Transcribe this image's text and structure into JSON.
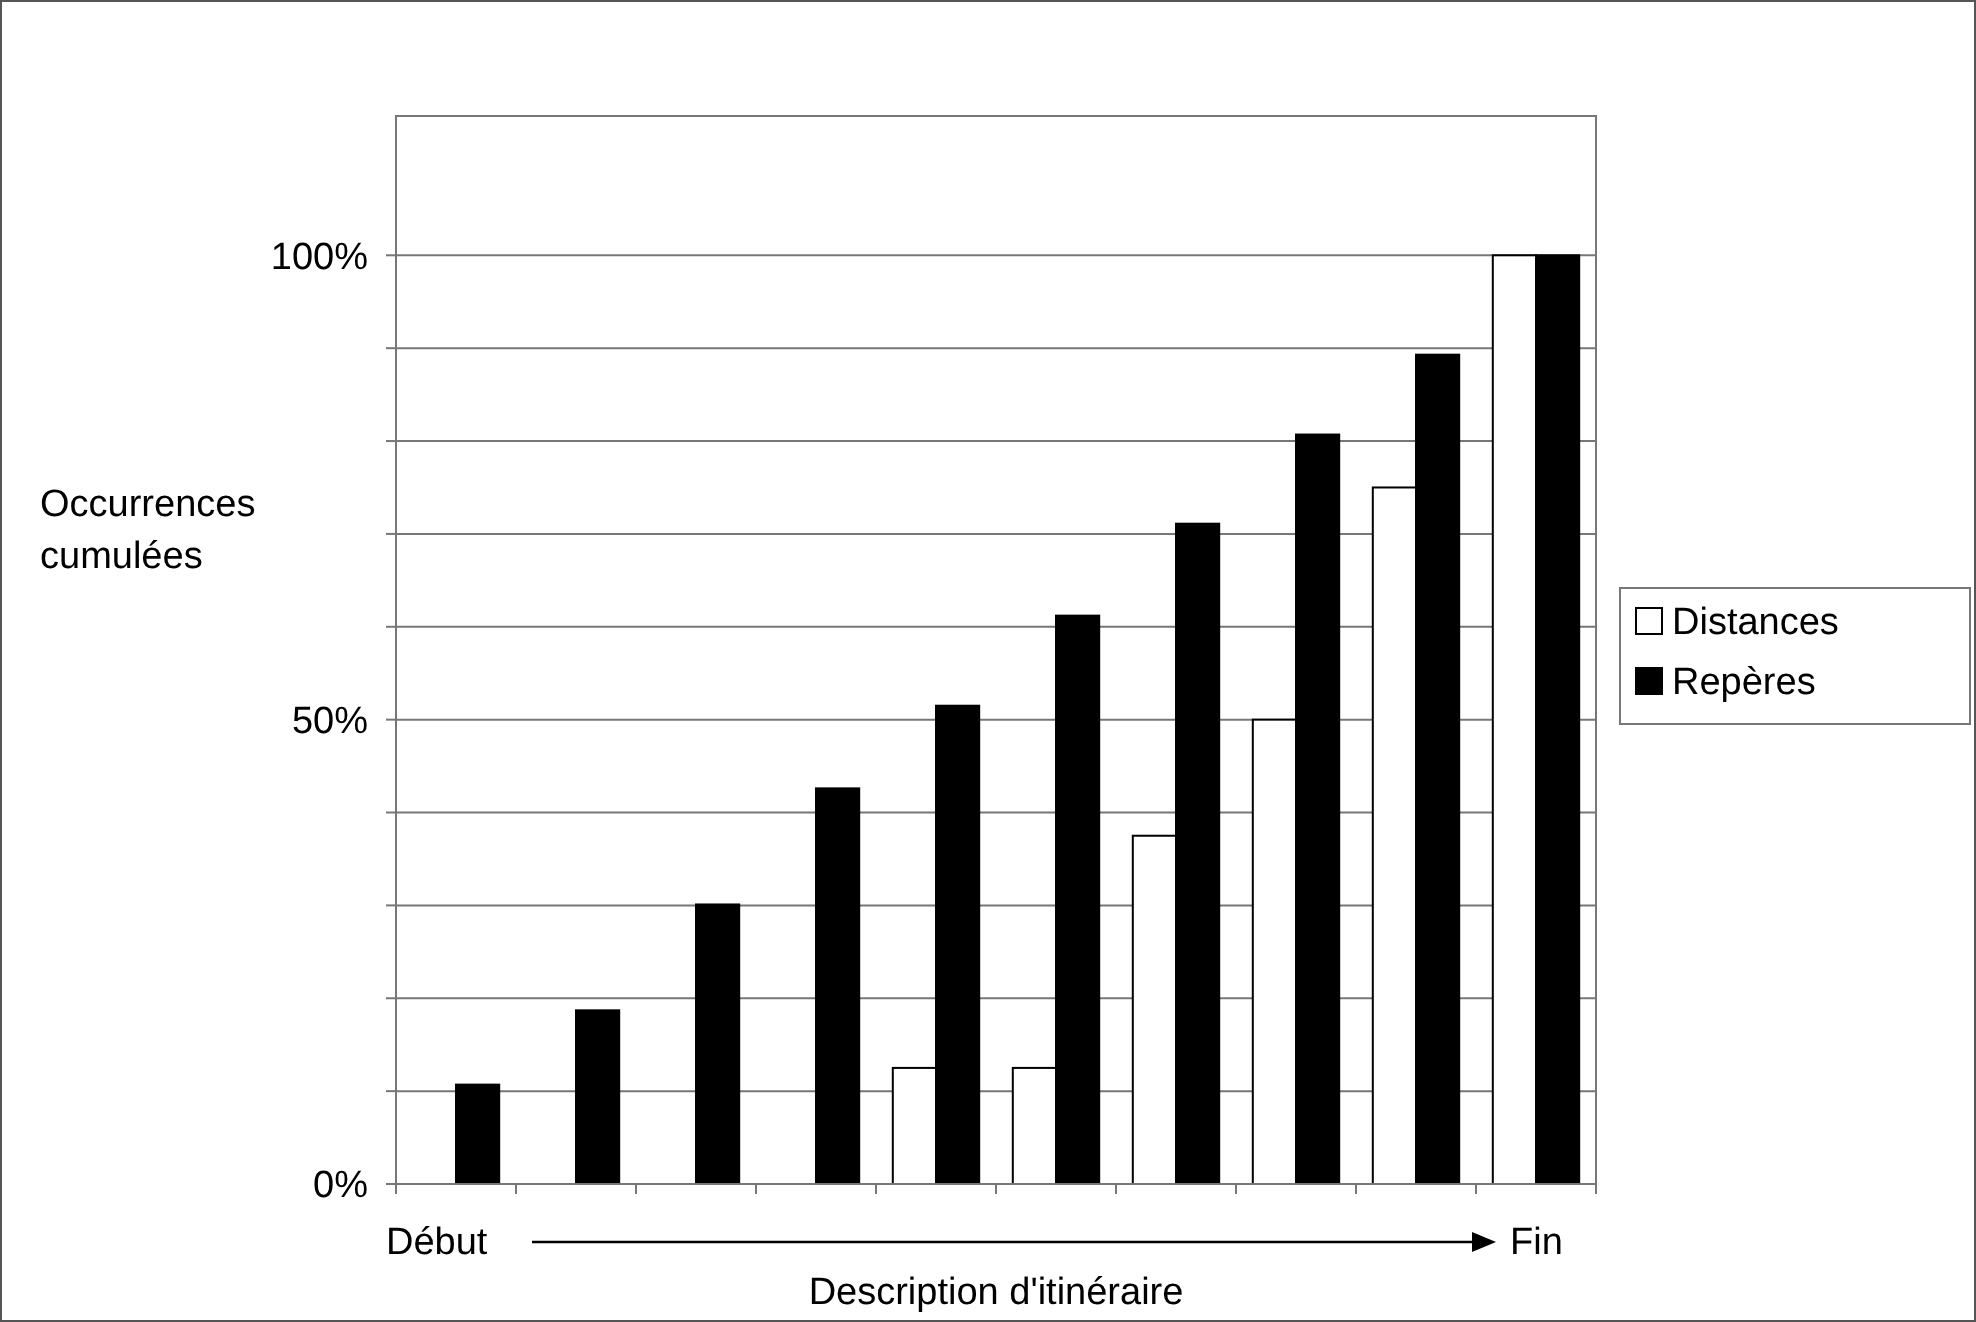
{
  "chart_data": {
    "type": "bar",
    "xlabel": "Description d'itinéraire",
    "ylabel": "Occurrences cumulées",
    "categories": [
      null,
      null,
      null,
      null,
      null,
      null,
      null,
      null,
      null,
      null
    ],
    "series": [
      {
        "name": "Distances",
        "color": "#ffffff",
        "values": [
          0,
          0,
          0,
          0,
          12.5,
          12.5,
          37.5,
          50,
          75,
          100
        ]
      },
      {
        "name": "Repères",
        "color": "#000000",
        "values": [
          10.7,
          18.7,
          30.1,
          42.6,
          51.5,
          61.2,
          71.1,
          80.7,
          89.3,
          100
        ]
      }
    ],
    "ylim": [
      0,
      115
    ],
    "yticks": [
      {
        "value": 0,
        "label": "0%"
      },
      {
        "value": 10,
        "label": null
      },
      {
        "value": 20,
        "label": null
      },
      {
        "value": 30,
        "label": null
      },
      {
        "value": 40,
        "label": null
      },
      {
        "value": 50,
        "label": "50%"
      },
      {
        "value": 60,
        "label": null
      },
      {
        "value": 70,
        "label": null
      },
      {
        "value": 80,
        "label": null
      },
      {
        "value": 90,
        "label": null
      },
      {
        "value": 100,
        "label": "100%"
      }
    ],
    "grid": "y",
    "legend": "right",
    "annotations": [
      "Début",
      "Fin"
    ]
  }
}
